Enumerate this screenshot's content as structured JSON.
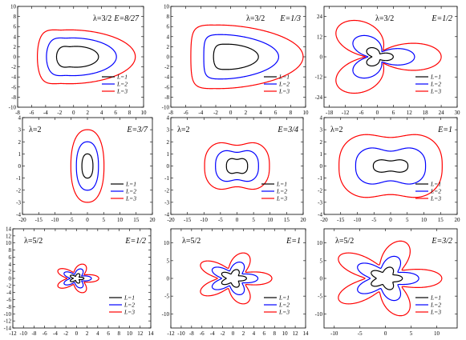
{
  "chart_data": [
    {
      "type": "line",
      "lambda_text": "λ=3/2",
      "energy_text": "E=8/27",
      "lambda_pos": "top-left",
      "xlim": [
        -8,
        10
      ],
      "ylim": [
        -10,
        10
      ],
      "xticks": [
        "-8",
        "-6",
        "-4",
        "-2",
        "0",
        "2",
        "4",
        "6",
        "8",
        "10"
      ],
      "yticks": [
        "-10",
        "-8",
        "-6",
        "-4",
        "-2",
        "0",
        "2",
        "4",
        "6",
        "8",
        "10"
      ],
      "series": [
        {
          "name": "L=1",
          "color": "#000000",
          "curve": "loop",
          "params": {
            "lambda": 1.5,
            "petals": 2,
            "a": 3.0,
            "b": 2.0,
            "t1": 1.6,
            "t2": 0
          }
        },
        {
          "name": "L=2",
          "color": "#0000ff",
          "curve": "loop",
          "params": {
            "lambda": 1.5,
            "petals": 2,
            "a": 5.0,
            "b": 3.7,
            "t1": 3.2,
            "t2": 0
          }
        },
        {
          "name": "L=3",
          "color": "#ff0000",
          "curve": "loop",
          "params": {
            "lambda": 1.5,
            "petals": 2,
            "a": 7.0,
            "b": 5.3,
            "t1": 5.2,
            "t2": 0
          }
        }
      ],
      "legend": "bottom-right"
    },
    {
      "type": "line",
      "lambda_text": "λ=3/2",
      "energy_text": "E=1/3",
      "lambda_pos": "top-left",
      "xlim": [
        -8,
        10
      ],
      "ylim": [
        -10,
        10
      ],
      "xticks": [
        "-8",
        "-6",
        "-4",
        "-2",
        "0",
        "2",
        "4",
        "6",
        "8",
        "10"
      ],
      "yticks": [
        "-10",
        "-8",
        "-6",
        "-4",
        "-2",
        "0",
        "2",
        "4",
        "6",
        "8",
        "10"
      ],
      "series": [
        {
          "name": "L=1",
          "color": "#000000",
          "curve": "loop",
          "params": {
            "lambda": 1.5,
            "petals": 2,
            "a": 3.0,
            "b": 2.5,
            "t1": 2.0,
            "t2": 0
          }
        },
        {
          "name": "L=2",
          "color": "#0000ff",
          "curve": "loop",
          "params": {
            "lambda": 1.5,
            "petals": 2,
            "a": 5.0,
            "b": 4.4,
            "t1": 4.0,
            "t2": 0
          }
        },
        {
          "name": "L=3",
          "color": "#ff0000",
          "curve": "loop",
          "params": {
            "lambda": 1.5,
            "petals": 2,
            "a": 7.5,
            "b": 6.3,
            "t1": 6.2,
            "t2": 0
          }
        }
      ],
      "legend": "bottom-right"
    },
    {
      "type": "line",
      "lambda_text": "λ=3/2",
      "energy_text": "E=1/2",
      "lambda_pos": "top-left",
      "xlim": [
        -20,
        30
      ],
      "ylim": [
        -30,
        30
      ],
      "xticks": [
        "-18",
        "-12",
        "-6",
        "0",
        "6",
        "12",
        "18",
        "24",
        "30"
      ],
      "yticks": [
        "-24",
        "-12",
        "0",
        "12",
        "24"
      ],
      "series": [
        {
          "name": "L=1",
          "color": "#000000",
          "curve": "loop",
          "params": {
            "lambda": 1.5,
            "petals": 3,
            "a": 6,
            "b": 2.0,
            "t1": 2.0,
            "t2": 0
          }
        },
        {
          "name": "L=2",
          "color": "#0000ff",
          "curve": "loop",
          "params": {
            "lambda": 1.5,
            "petals": 3,
            "a": 14,
            "b": 3.5,
            "t1": 4.0,
            "t2": 0
          }
        },
        {
          "name": "L=3",
          "color": "#ff0000",
          "curve": "loop",
          "params": {
            "lambda": 1.5,
            "petals": 3,
            "a": 24,
            "b": 4.5,
            "t1": 7.0,
            "t2": 0
          }
        }
      ],
      "legend": "bottom-right"
    },
    {
      "type": "line",
      "lambda_text": "λ=2",
      "energy_text": "E=3/7",
      "lambda_pos": "top-left",
      "xlim": [
        -20,
        20
      ],
      "ylim": [
        -4,
        4
      ],
      "xticks": [
        "-20",
        "-15",
        "-10",
        "-5",
        "0",
        "5",
        "10",
        "15",
        "20"
      ],
      "yticks": [
        "-4",
        "-3",
        "-2",
        "-1",
        "0",
        "1",
        "2",
        "3",
        "4"
      ],
      "series": [
        {
          "name": "L=1",
          "color": "#000000",
          "curve": "oval",
          "params": {
            "a": 1.7,
            "b": 1.0,
            "dent": 0,
            "p": 2.3
          }
        },
        {
          "name": "L=2",
          "color": "#0000ff",
          "curve": "oval",
          "params": {
            "a": 3.4,
            "b": 2.0,
            "dent": 0,
            "p": 2.3
          }
        },
        {
          "name": "L=3",
          "color": "#ff0000",
          "curve": "oval",
          "params": {
            "a": 5.1,
            "b": 3.0,
            "dent": 0,
            "p": 2.3
          }
        }
      ],
      "legend": "bottom-right"
    },
    {
      "type": "line",
      "lambda_text": "λ=2",
      "energy_text": "E=3/4",
      "lambda_pos": "top-left",
      "xlim": [
        -20,
        20
      ],
      "ylim": [
        -4,
        4
      ],
      "xticks": [
        "-20",
        "-15",
        "-10",
        "-5",
        "0",
        "5",
        "10",
        "15",
        "20"
      ],
      "yticks": [
        "-4",
        "-3",
        "-2",
        "-1",
        "0",
        "1",
        "2",
        "3",
        "4"
      ],
      "series": [
        {
          "name": "L=1",
          "color": "#000000",
          "curve": "oval",
          "params": {
            "a": 3.2,
            "b": 0.7,
            "dent": 0.22,
            "p": 2.6
          }
        },
        {
          "name": "L=2",
          "color": "#0000ff",
          "curve": "oval",
          "params": {
            "a": 6.5,
            "b": 1.45,
            "dent": 0.22,
            "p": 2.6
          }
        },
        {
          "name": "L=3",
          "color": "#ff0000",
          "curve": "oval",
          "params": {
            "a": 9.8,
            "b": 2.2,
            "dent": 0.22,
            "p": 2.6
          }
        }
      ],
      "legend": "bottom-right"
    },
    {
      "type": "line",
      "lambda_text": "λ=2",
      "energy_text": "E=1",
      "lambda_pos": "top-left",
      "xlim": [
        -20,
        20
      ],
      "ylim": [
        -4,
        4
      ],
      "xticks": [
        "-20",
        "-15",
        "-10",
        "-5",
        "0",
        "5",
        "10",
        "15",
        "20"
      ],
      "yticks": [
        "-4",
        "-3",
        "-2",
        "-1",
        "0",
        "1",
        "2",
        "3",
        "4"
      ],
      "series": [
        {
          "name": "L=1",
          "color": "#000000",
          "curve": "oval",
          "params": {
            "a": 5.2,
            "b": 0.6,
            "dent": 0.3,
            "p": 2.6
          }
        },
        {
          "name": "L=2",
          "color": "#0000ff",
          "curve": "oval",
          "params": {
            "a": 10.5,
            "b": 1.75,
            "dent": 0.3,
            "p": 2.6
          }
        },
        {
          "name": "L=3",
          "color": "#ff0000",
          "curve": "oval",
          "params": {
            "a": 15.5,
            "b": 2.95,
            "dent": 0.2,
            "p": 2.6
          }
        }
      ],
      "legend": "bottom-right"
    },
    {
      "type": "line",
      "lambda_text": "λ=5/2",
      "energy_text": "E=1/2",
      "lambda_pos": "top-left",
      "xlim": [
        -12,
        14
      ],
      "ylim": [
        -14,
        14
      ],
      "xticks": [
        "-12",
        "-10",
        "-8",
        "-6",
        "-4",
        "-2",
        "0",
        "2",
        "4",
        "6",
        "8",
        "10",
        "12",
        "14"
      ],
      "yticks": [
        "-14",
        "-12",
        "-10",
        "-8",
        "-6",
        "-4",
        "-2",
        "0",
        "2",
        "4",
        "6",
        "8",
        "10",
        "12",
        "14"
      ],
      "series": [
        {
          "name": "L=1",
          "color": "#000000",
          "curve": "loop",
          "params": {
            "lambda": 2.5,
            "petals": 5,
            "a": 1.4,
            "b": 0.6,
            "t1": 0.45,
            "t2": 0
          }
        },
        {
          "name": "L=2",
          "color": "#0000ff",
          "curve": "loop",
          "params": {
            "lambda": 2.5,
            "petals": 5,
            "a": 2.8,
            "b": 1.2,
            "t1": 0.9,
            "t2": 0
          }
        },
        {
          "name": "L=3",
          "color": "#ff0000",
          "curve": "loop",
          "params": {
            "lambda": 2.5,
            "petals": 5,
            "a": 4.2,
            "b": 1.8,
            "t1": 1.35,
            "t2": 0
          }
        }
      ],
      "legend": "bottom-right"
    },
    {
      "type": "line",
      "lambda_text": "λ=5/2",
      "energy_text": "E=1",
      "lambda_pos": "top-left",
      "xlim": [
        -12,
        14
      ],
      "ylim": [
        -14,
        14
      ],
      "xticks": [
        "-12",
        "-10",
        "-8",
        "-6",
        "-4",
        "-2",
        "0",
        "2",
        "4",
        "6",
        "8",
        "10",
        "12",
        "14"
      ],
      "yticks": [
        "-10",
        "-5",
        "0",
        "5",
        "10"
      ],
      "series": [
        {
          "name": "L=1",
          "color": "#000000",
          "curve": "loop",
          "params": {
            "lambda": 2.5,
            "petals": 5,
            "a": 2.6,
            "b": 1.3,
            "t1": 0.9,
            "t2": 0
          }
        },
        {
          "name": "L=2",
          "color": "#0000ff",
          "curve": "loop",
          "params": {
            "lambda": 2.5,
            "petals": 5,
            "a": 4.8,
            "b": 2.2,
            "t1": 1.8,
            "t2": 0
          }
        },
        {
          "name": "L=3",
          "color": "#ff0000",
          "curve": "loop",
          "params": {
            "lambda": 2.5,
            "petals": 5,
            "a": 7.5,
            "b": 3.0,
            "t1": 2.7,
            "t2": 0
          }
        }
      ],
      "legend": "bottom-right"
    },
    {
      "type": "line",
      "lambda_text": "λ=5/2",
      "energy_text": "E=3/2",
      "lambda_pos": "top-left",
      "xlim": [
        -12,
        14
      ],
      "ylim": [
        -14,
        14
      ],
      "xticks": [
        "-10",
        "-5",
        "0",
        "5",
        "10"
      ],
      "yticks": [
        "-10",
        "-5",
        "0",
        "5",
        "10"
      ],
      "series": [
        {
          "name": "L=1",
          "color": "#000000",
          "curve": "loop",
          "params": {
            "lambda": 2.5,
            "petals": 5,
            "a": 3.3,
            "b": 1.8,
            "t1": 1.0,
            "t2": 0
          }
        },
        {
          "name": "L=2",
          "color": "#0000ff",
          "curve": "loop",
          "params": {
            "lambda": 2.5,
            "petals": 5,
            "a": 6.5,
            "b": 3.0,
            "t1": 2.0,
            "t2": 0
          }
        },
        {
          "name": "L=3",
          "color": "#ff0000",
          "curve": "loop",
          "params": {
            "lambda": 2.5,
            "petals": 5,
            "a": 11.0,
            "b": 4.0,
            "t1": 3.0,
            "t2": 0
          }
        }
      ],
      "legend": "bottom-right"
    }
  ]
}
